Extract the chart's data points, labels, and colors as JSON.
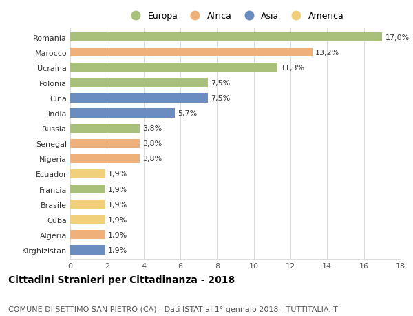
{
  "countries": [
    "Romania",
    "Marocco",
    "Ucraina",
    "Polonia",
    "Cina",
    "India",
    "Russia",
    "Senegal",
    "Nigeria",
    "Ecuador",
    "Francia",
    "Brasile",
    "Cuba",
    "Algeria",
    "Kirghizistan"
  ],
  "values": [
    17.0,
    13.2,
    11.3,
    7.5,
    7.5,
    5.7,
    3.8,
    3.8,
    3.8,
    1.9,
    1.9,
    1.9,
    1.9,
    1.9,
    1.9
  ],
  "continents": [
    "Europa",
    "Africa",
    "Europa",
    "Europa",
    "Asia",
    "Asia",
    "Europa",
    "Africa",
    "Africa",
    "America",
    "Europa",
    "America",
    "America",
    "Africa",
    "Asia"
  ],
  "colors": {
    "Europa": "#a8c07a",
    "Africa": "#f0b07a",
    "Asia": "#6b8cbf",
    "America": "#f0d07a"
  },
  "legend_order": [
    "Europa",
    "Africa",
    "Asia",
    "America"
  ],
  "xlim": [
    0,
    18
  ],
  "xticks": [
    0,
    2,
    4,
    6,
    8,
    10,
    12,
    14,
    16,
    18
  ],
  "title": "Cittadini Stranieri per Cittadinanza - 2018",
  "subtitle": "COMUNE DI SETTIMO SAN PIETRO (CA) - Dati ISTAT al 1° gennaio 2018 - TUTTITALIA.IT",
  "title_fontsize": 10,
  "subtitle_fontsize": 8,
  "label_fontsize": 8,
  "tick_fontsize": 8,
  "bar_height": 0.6,
  "background_color": "#ffffff",
  "grid_color": "#dddddd"
}
